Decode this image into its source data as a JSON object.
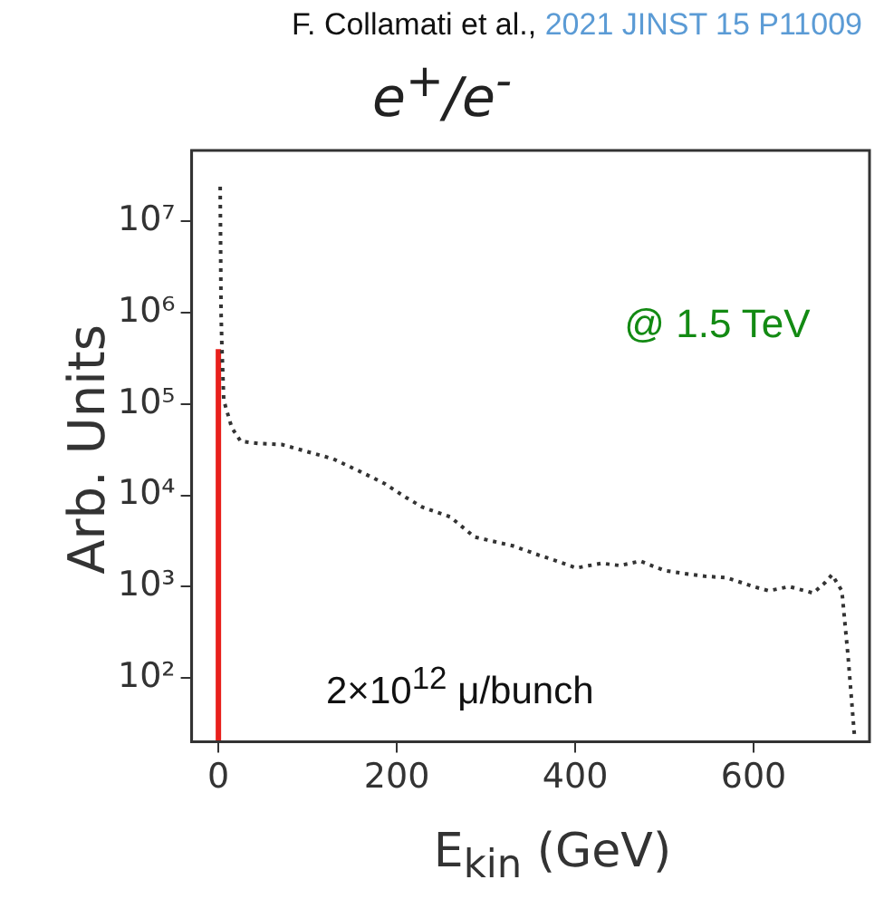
{
  "chart_data": {
    "type": "line",
    "title": "e$^{+}$/e$^{-}$",
    "xlabel": "E$_{kin}$ (GeV)",
    "ylabel": "Arb. Units",
    "annotations": [
      "F. Collamati et al.,",
      "2021 JINST 15 P11009",
      "@ 1.5 TeV",
      "2×10$^{12}$ μ/bunch"
    ],
    "log": "y",
    "grid": false,
    "legend": false,
    "marker": "none",
    "xlim": [
      -30,
      730
    ],
    "xticks": [
      0,
      200,
      400,
      600
    ],
    "ylim": [
      20,
      60000000
    ],
    "yticks": [
      {
        "value": 100,
        "label": "10²"
      },
      {
        "value": 1000,
        "label": "10³"
      },
      {
        "value": 10000,
        "label": "10⁴"
      },
      {
        "value": 100000,
        "label": "10⁵"
      },
      {
        "value": 1000000,
        "label": "10⁶"
      },
      {
        "value": 10000000,
        "label": "10⁷"
      }
    ],
    "series": [
      {
        "color": "#e8201c",
        "line_style": "solid",
        "x": [
          0,
          0
        ],
        "values": [
          20,
          400000
        ]
      },
      {
        "color": "#333333",
        "line_style": "dotted",
        "x": [
          2,
          3,
          4,
          6,
          15,
          25,
          45,
          71,
          100,
          129,
          160,
          186,
          210,
          229,
          260,
          287,
          310,
          330,
          360,
          380,
          401,
          430,
          450,
          473,
          500,
          520,
          545,
          570,
          600,
          617,
          640,
          667,
          680,
          688,
          699,
          706,
          713
        ],
        "values": [
          24000000,
          1000000,
          400000,
          110000,
          55000,
          39000,
          37000,
          36000,
          30000,
          25000,
          18000,
          13500,
          9500,
          7400,
          5800,
          3500,
          3100,
          2800,
          2200,
          1900,
          1600,
          1800,
          1700,
          1900,
          1500,
          1400,
          1300,
          1250,
          1000,
          900,
          1000,
          850,
          1100,
          1350,
          900,
          170,
          24
        ]
      }
    ]
  }
}
